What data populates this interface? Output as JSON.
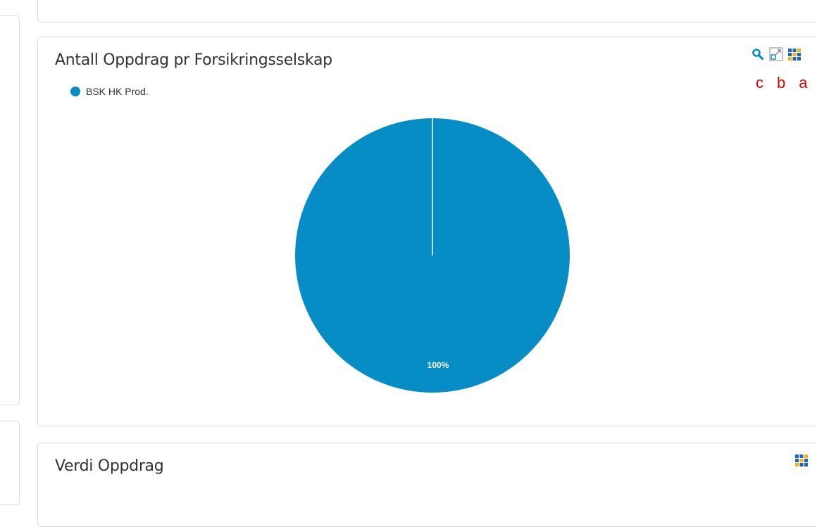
{
  "cards": [
    {
      "title": "Antall Oppdrag pr Forsikringsselskap",
      "toolbar": {
        "zoom_icon": "search-icon",
        "expand_icon": "resize-icon",
        "grid_icon": "grid-icon",
        "marks": [
          "c",
          "b",
          "a"
        ]
      }
    },
    {
      "title": "Verdi Oppdrag",
      "toolbar": {
        "grid_icon": "grid-icon"
      }
    }
  ],
  "colors": {
    "accent": "#068dc6",
    "annotation": "#e00000",
    "border": "#d9d9d9"
  },
  "chart_data": {
    "type": "pie",
    "title": "Antall Oppdrag pr Forsikringsselskap",
    "legend_position": "top-left",
    "series": [
      {
        "name": "BSK HK Prod.",
        "value": 100,
        "label": "100%",
        "color": "#068dc6"
      }
    ]
  }
}
